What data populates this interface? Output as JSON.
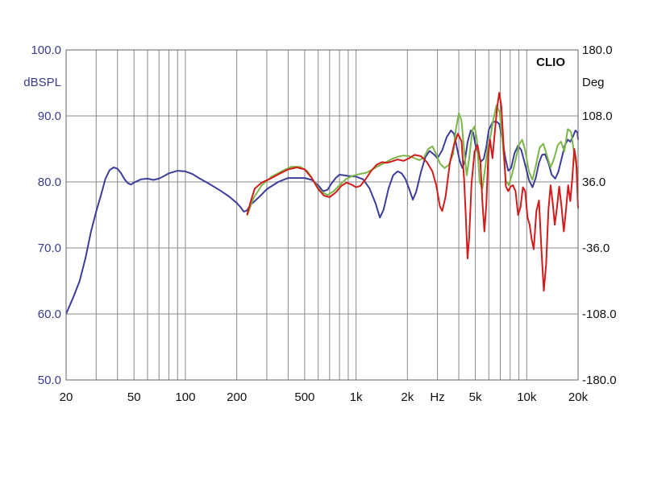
{
  "chart_data": {
    "type": "line",
    "brand": "CLIO",
    "ylabel": "dBSPL",
    "ylabel_right": "Deg",
    "xlabel": "Hz",
    "xscale": "log",
    "xlim": [
      20,
      20000
    ],
    "ylim": [
      50,
      100
    ],
    "ylim_right": [
      -180,
      180
    ],
    "grid": true,
    "colors": {
      "plot_bg": "#ffffff",
      "grid": "#888888",
      "axis_text_left": "#3a3a8c"
    },
    "y_ticks": [
      "100.0",
      "90.0",
      "80.0",
      "70.0",
      "60.0",
      "50.0"
    ],
    "y_ticks_right": [
      "180.0",
      "108.0",
      "36.0",
      "-36.0",
      "-108.0",
      "-180.0"
    ],
    "x_ticks": [
      {
        "v": 20,
        "t": "20"
      },
      {
        "v": 50,
        "t": "50"
      },
      {
        "v": 100,
        "t": "100"
      },
      {
        "v": 200,
        "t": "200"
      },
      {
        "v": 500,
        "t": "500"
      },
      {
        "v": 1000,
        "t": "1k"
      },
      {
        "v": 2000,
        "t": "2k"
      },
      {
        "v": 5000,
        "t": "5k"
      },
      {
        "v": 10000,
        "t": "10k"
      },
      {
        "v": 20000,
        "t": "20k"
      }
    ],
    "series": [
      {
        "color": "#3d3d9a",
        "points": [
          [
            20,
            60
          ],
          [
            22,
            62.5
          ],
          [
            24,
            65
          ],
          [
            26,
            68.5
          ],
          [
            28,
            72.5
          ],
          [
            30,
            75.5
          ],
          [
            32,
            78
          ],
          [
            34,
            80.5
          ],
          [
            36,
            81.8
          ],
          [
            38,
            82.2
          ],
          [
            40,
            82
          ],
          [
            42,
            81.3
          ],
          [
            44,
            80.4
          ],
          [
            46,
            79.8
          ],
          [
            48,
            79.6
          ],
          [
            50,
            79.9
          ],
          [
            55,
            80.4
          ],
          [
            60,
            80.5
          ],
          [
            65,
            80.3
          ],
          [
            70,
            80.5
          ],
          [
            75,
            80.9
          ],
          [
            80,
            81.3
          ],
          [
            90,
            81.7
          ],
          [
            100,
            81.6
          ],
          [
            110,
            81.2
          ],
          [
            120,
            80.6
          ],
          [
            140,
            79.6
          ],
          [
            160,
            78.7
          ],
          [
            180,
            77.8
          ],
          [
            200,
            76.8
          ],
          [
            210,
            76.2
          ],
          [
            220,
            75.5
          ],
          [
            230,
            75.7
          ],
          [
            240,
            76.5
          ],
          [
            260,
            77.3
          ],
          [
            280,
            78.1
          ],
          [
            300,
            78.9
          ],
          [
            350,
            80
          ],
          [
            400,
            80.6
          ],
          [
            450,
            80.6
          ],
          [
            500,
            80.6
          ],
          [
            550,
            80.3
          ],
          [
            600,
            79.5
          ],
          [
            640,
            78.6
          ],
          [
            680,
            78.8
          ],
          [
            720,
            79.8
          ],
          [
            760,
            80.6
          ],
          [
            800,
            81.1
          ],
          [
            850,
            81
          ],
          [
            900,
            80.9
          ],
          [
            1000,
            80.8
          ],
          [
            1100,
            80.4
          ],
          [
            1200,
            79
          ],
          [
            1300,
            76.8
          ],
          [
            1380,
            74.6
          ],
          [
            1450,
            75.8
          ],
          [
            1550,
            79
          ],
          [
            1650,
            81
          ],
          [
            1750,
            81.6
          ],
          [
            1850,
            81.3
          ],
          [
            1950,
            80.4
          ],
          [
            2050,
            78.9
          ],
          [
            2150,
            77.3
          ],
          [
            2250,
            78.5
          ],
          [
            2400,
            81.5
          ],
          [
            2550,
            83.8
          ],
          [
            2700,
            84.7
          ],
          [
            2850,
            84.2
          ],
          [
            3000,
            83.6
          ],
          [
            3200,
            84.8
          ],
          [
            3400,
            86.8
          ],
          [
            3600,
            87.8
          ],
          [
            3750,
            87.3
          ],
          [
            3900,
            85.2
          ],
          [
            4050,
            83.2
          ],
          [
            4200,
            82.1
          ],
          [
            4350,
            83.3
          ],
          [
            4500,
            86
          ],
          [
            4700,
            87.8
          ],
          [
            4850,
            87.5
          ],
          [
            5000,
            85.7
          ],
          [
            5200,
            84.1
          ],
          [
            5400,
            83.1
          ],
          [
            5600,
            83.5
          ],
          [
            5800,
            85.3
          ],
          [
            6000,
            87.9
          ],
          [
            6300,
            89
          ],
          [
            6600,
            89.2
          ],
          [
            6900,
            88.8
          ],
          [
            7200,
            86.5
          ],
          [
            7500,
            83.6
          ],
          [
            7800,
            81.7
          ],
          [
            8100,
            82.1
          ],
          [
            8500,
            84.4
          ],
          [
            8900,
            85.5
          ],
          [
            9300,
            84.8
          ],
          [
            9800,
            82.6
          ],
          [
            10300,
            80.3
          ],
          [
            10800,
            79.2
          ],
          [
            11300,
            80.6
          ],
          [
            11800,
            82.9
          ],
          [
            12300,
            84.1
          ],
          [
            12800,
            84.2
          ],
          [
            13400,
            82.9
          ],
          [
            14000,
            81.1
          ],
          [
            14700,
            80.5
          ],
          [
            15300,
            81.5
          ],
          [
            16000,
            83.5
          ],
          [
            16700,
            85.5
          ],
          [
            17400,
            86.4
          ],
          [
            18000,
            86.1
          ],
          [
            18700,
            86.9
          ],
          [
            19300,
            87.8
          ],
          [
            19800,
            87.5
          ],
          [
            20000,
            86.4
          ]
        ]
      },
      {
        "color": "#7ab648",
        "points": [
          [
            230,
            74.9
          ],
          [
            250,
            77.5
          ],
          [
            280,
            79.5
          ],
          [
            320,
            80.8
          ],
          [
            380,
            81.8
          ],
          [
            420,
            82.3
          ],
          [
            470,
            82.3
          ],
          [
            520,
            81.6
          ],
          [
            570,
            80
          ],
          [
            620,
            78.6
          ],
          [
            680,
            78
          ],
          [
            740,
            78.6
          ],
          [
            800,
            79.5
          ],
          [
            870,
            80.4
          ],
          [
            950,
            80.9
          ],
          [
            1050,
            81.2
          ],
          [
            1150,
            81.4
          ],
          [
            1250,
            81.9
          ],
          [
            1350,
            82.4
          ],
          [
            1450,
            82.8
          ],
          [
            1600,
            83.4
          ],
          [
            1750,
            83.8
          ],
          [
            1900,
            84
          ],
          [
            2050,
            83.9
          ],
          [
            2200,
            83.6
          ],
          [
            2350,
            83.3
          ],
          [
            2500,
            83.7
          ],
          [
            2650,
            85
          ],
          [
            2800,
            85.4
          ],
          [
            2950,
            84.2
          ],
          [
            3100,
            82.8
          ],
          [
            3300,
            82.1
          ],
          [
            3500,
            82.6
          ],
          [
            3700,
            84.2
          ],
          [
            3850,
            88
          ],
          [
            4000,
            90.4
          ],
          [
            4150,
            89.3
          ],
          [
            4300,
            84.7
          ],
          [
            4450,
            81
          ],
          [
            4600,
            83.5
          ],
          [
            4800,
            87.8
          ],
          [
            4950,
            88.4
          ],
          [
            5100,
            86.5
          ],
          [
            5300,
            80
          ],
          [
            5500,
            79
          ],
          [
            5700,
            82
          ],
          [
            5900,
            85
          ],
          [
            6100,
            86.5
          ],
          [
            6350,
            89.2
          ],
          [
            6650,
            91.6
          ],
          [
            6950,
            90.5
          ],
          [
            7250,
            85.5
          ],
          [
            7550,
            80.2
          ],
          [
            7850,
            79.5
          ],
          [
            8200,
            81.1
          ],
          [
            8600,
            83.3
          ],
          [
            9000,
            85.6
          ],
          [
            9400,
            86.4
          ],
          [
            9800,
            84.8
          ],
          [
            10300,
            81.6
          ],
          [
            10800,
            80.3
          ],
          [
            11300,
            82.4
          ],
          [
            11900,
            85.2
          ],
          [
            12500,
            85.8
          ],
          [
            13100,
            84.1
          ],
          [
            13800,
            82.2
          ],
          [
            14500,
            83.6
          ],
          [
            15200,
            85.6
          ],
          [
            15900,
            86.1
          ],
          [
            16600,
            84.6
          ],
          [
            17400,
            88
          ],
          [
            18200,
            87.6
          ],
          [
            18900,
            84.6
          ],
          [
            19500,
            82.5
          ],
          [
            20000,
            81.4
          ]
        ]
      },
      {
        "color": "#d41b1b",
        "points": [
          [
            230,
            75
          ],
          [
            240,
            76.8
          ],
          [
            255,
            79
          ],
          [
            280,
            79.9
          ],
          [
            320,
            80.6
          ],
          [
            360,
            81.3
          ],
          [
            400,
            81.9
          ],
          [
            450,
            82.2
          ],
          [
            500,
            81.9
          ],
          [
            550,
            80.6
          ],
          [
            600,
            78.9
          ],
          [
            650,
            77.9
          ],
          [
            700,
            77.7
          ],
          [
            760,
            78.4
          ],
          [
            820,
            79.4
          ],
          [
            880,
            79.9
          ],
          [
            940,
            79.6
          ],
          [
            1000,
            79.2
          ],
          [
            1060,
            79.4
          ],
          [
            1130,
            80.3
          ],
          [
            1220,
            81.6
          ],
          [
            1320,
            82.6
          ],
          [
            1420,
            83
          ],
          [
            1520,
            82.9
          ],
          [
            1620,
            83.1
          ],
          [
            1750,
            83.4
          ],
          [
            1900,
            83.2
          ],
          [
            2050,
            83.6
          ],
          [
            2200,
            84.1
          ],
          [
            2400,
            83.9
          ],
          [
            2600,
            83
          ],
          [
            2800,
            81.6
          ],
          [
            2950,
            79.5
          ],
          [
            3100,
            76.3
          ],
          [
            3200,
            75.6
          ],
          [
            3350,
            77.8
          ],
          [
            3550,
            83
          ],
          [
            3750,
            85.6
          ],
          [
            3950,
            87.3
          ],
          [
            4150,
            86.2
          ],
          [
            4300,
            80.3
          ],
          [
            4400,
            74.6
          ],
          [
            4500,
            68.4
          ],
          [
            4600,
            71.5
          ],
          [
            4750,
            79.7
          ],
          [
            4950,
            84.6
          ],
          [
            5150,
            85.6
          ],
          [
            5350,
            83.1
          ],
          [
            5500,
            77
          ],
          [
            5650,
            72.5
          ],
          [
            5800,
            76.6
          ],
          [
            5950,
            84
          ],
          [
            6100,
            86.4
          ],
          [
            6300,
            83.6
          ],
          [
            6500,
            87.5
          ],
          [
            6700,
            91.2
          ],
          [
            6900,
            93.5
          ],
          [
            7100,
            91.5
          ],
          [
            7300,
            86
          ],
          [
            7550,
            79.3
          ],
          [
            7800,
            78.6
          ],
          [
            8050,
            79.3
          ],
          [
            8300,
            79.5
          ],
          [
            8600,
            78.6
          ],
          [
            8900,
            75
          ],
          [
            9200,
            76.2
          ],
          [
            9500,
            79.2
          ],
          [
            9800,
            78.6
          ],
          [
            10100,
            74.7
          ],
          [
            10400,
            73.5
          ],
          [
            10700,
            71.3
          ],
          [
            11000,
            69.8
          ],
          [
            11400,
            75.6
          ],
          [
            11800,
            77.2
          ],
          [
            12200,
            69.6
          ],
          [
            12600,
            63.5
          ],
          [
            13000,
            67.6
          ],
          [
            13400,
            75.7
          ],
          [
            13800,
            79.5
          ],
          [
            14200,
            76.9
          ],
          [
            14600,
            73.5
          ],
          [
            15000,
            75.9
          ],
          [
            15500,
            79.3
          ],
          [
            16000,
            76.2
          ],
          [
            16500,
            72.5
          ],
          [
            17000,
            75.9
          ],
          [
            17500,
            79.5
          ],
          [
            18000,
            77.1
          ],
          [
            18500,
            80.5
          ],
          [
            19000,
            85
          ],
          [
            19500,
            83.2
          ],
          [
            20000,
            76
          ]
        ]
      }
    ]
  }
}
